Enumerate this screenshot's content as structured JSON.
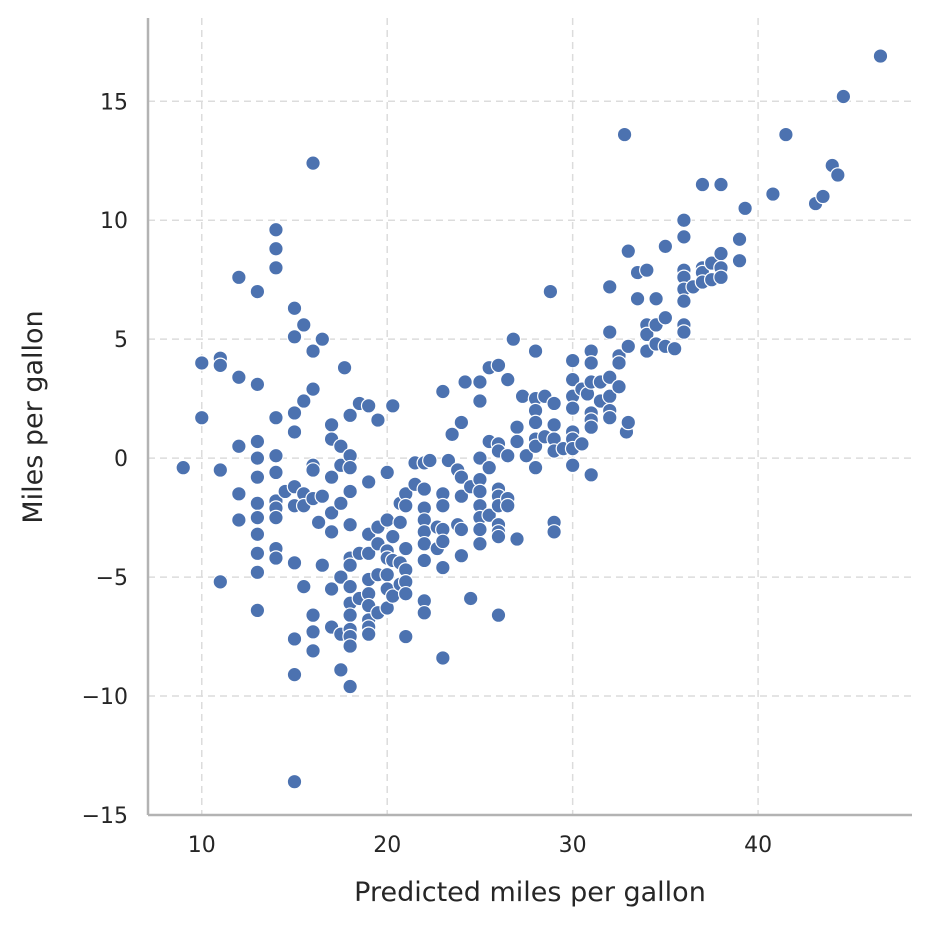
{
  "chart_data": {
    "type": "scatter",
    "title": "",
    "xlabel": "Predicted miles per gallon",
    "ylabel": "Miles per gallon",
    "xlim": [
      7.1,
      48.3
    ],
    "ylim": [
      -15.0,
      18.5
    ],
    "x_ticks": [
      10,
      20,
      30,
      40
    ],
    "y_ticks": [
      -15,
      -10,
      -5,
      0,
      5,
      10,
      15
    ],
    "y_tick_labels": [
      "−15",
      "−10",
      "−5",
      "0",
      "5",
      "10",
      "15"
    ],
    "grid": true,
    "color": "#4c72b0",
    "points": [
      [
        9,
        -0.4
      ],
      [
        10,
        4.0
      ],
      [
        10,
        1.7
      ],
      [
        11,
        4.2
      ],
      [
        11,
        3.9
      ],
      [
        11,
        -0.5
      ],
      [
        11,
        -5.2
      ],
      [
        12,
        7.6
      ],
      [
        12,
        3.4
      ],
      [
        12,
        0.5
      ],
      [
        12,
        -1.5
      ],
      [
        12,
        -2.6
      ],
      [
        13,
        7.0
      ],
      [
        13,
        3.1
      ],
      [
        13,
        0.7
      ],
      [
        13,
        0.0
      ],
      [
        13,
        -0.8
      ],
      [
        13,
        -1.9
      ],
      [
        13,
        -2.5
      ],
      [
        13,
        -3.2
      ],
      [
        13,
        -4.0
      ],
      [
        13,
        -4.8
      ],
      [
        13,
        -6.4
      ],
      [
        14,
        9.6
      ],
      [
        14,
        8.8
      ],
      [
        14,
        8.0
      ],
      [
        14,
        1.7
      ],
      [
        14,
        0.1
      ],
      [
        14,
        -0.6
      ],
      [
        14,
        -1.8
      ],
      [
        14,
        -2.1
      ],
      [
        14,
        -2.5
      ],
      [
        14,
        -3.8
      ],
      [
        14,
        -4.2
      ],
      [
        14.5,
        -1.4
      ],
      [
        15,
        6.3
      ],
      [
        15,
        5.1
      ],
      [
        15,
        1.9
      ],
      [
        15,
        1.1
      ],
      [
        15,
        -1.2
      ],
      [
        15,
        -2.0
      ],
      [
        15,
        -4.4
      ],
      [
        15,
        -7.6
      ],
      [
        15,
        -9.1
      ],
      [
        15,
        -13.6
      ],
      [
        15.5,
        5.6
      ],
      [
        15.5,
        2.4
      ],
      [
        15.5,
        -1.5
      ],
      [
        15.5,
        -2.0
      ],
      [
        15.5,
        -5.4
      ],
      [
        16,
        12.4
      ],
      [
        16,
        4.5
      ],
      [
        16,
        2.9
      ],
      [
        16,
        -0.3
      ],
      [
        16,
        -0.5
      ],
      [
        16,
        -1.7
      ],
      [
        16,
        -6.6
      ],
      [
        16,
        -7.3
      ],
      [
        16,
        -8.1
      ],
      [
        16.3,
        -2.7
      ],
      [
        16.5,
        5.0
      ],
      [
        16.5,
        -1.6
      ],
      [
        16.5,
        -4.5
      ],
      [
        17,
        1.4
      ],
      [
        17,
        0.8
      ],
      [
        17,
        -0.8
      ],
      [
        17,
        -2.3
      ],
      [
        17,
        -3.1
      ],
      [
        17,
        -5.5
      ],
      [
        17,
        -7.1
      ],
      [
        17.5,
        0.5
      ],
      [
        17.5,
        -0.3
      ],
      [
        17.5,
        -1.9
      ],
      [
        17.5,
        -5.0
      ],
      [
        17.5,
        -7.4
      ],
      [
        17.5,
        -8.9
      ],
      [
        17.7,
        3.8
      ],
      [
        18,
        1.8
      ],
      [
        18,
        0.1
      ],
      [
        18,
        -0.4
      ],
      [
        18,
        -1.4
      ],
      [
        18,
        -2.8
      ],
      [
        18,
        -4.2
      ],
      [
        18,
        -4.5
      ],
      [
        18,
        -5.4
      ],
      [
        18,
        -6.1
      ],
      [
        18,
        -6.6
      ],
      [
        18,
        -7.2
      ],
      [
        18,
        -7.5
      ],
      [
        18,
        -7.9
      ],
      [
        18,
        -9.6
      ],
      [
        18.5,
        2.3
      ],
      [
        18.5,
        -4.0
      ],
      [
        18.5,
        -5.9
      ],
      [
        19,
        2.2
      ],
      [
        19,
        -1.0
      ],
      [
        19,
        -3.2
      ],
      [
        19,
        -4.0
      ],
      [
        19,
        -5.1
      ],
      [
        19,
        -5.7
      ],
      [
        19,
        -6.2
      ],
      [
        19,
        -6.8
      ],
      [
        19,
        -7.1
      ],
      [
        19,
        -7.4
      ],
      [
        19.5,
        1.6
      ],
      [
        19.5,
        -2.9
      ],
      [
        19.5,
        -3.6
      ],
      [
        19.5,
        -4.9
      ],
      [
        19.5,
        -6.5
      ],
      [
        20,
        -0.6
      ],
      [
        20,
        -2.6
      ],
      [
        20,
        -3.9
      ],
      [
        20,
        -4.2
      ],
      [
        20,
        -4.9
      ],
      [
        20,
        -5.5
      ],
      [
        20,
        -6.3
      ],
      [
        20.3,
        2.2
      ],
      [
        20.3,
        -3.3
      ],
      [
        20.3,
        -4.3
      ],
      [
        20.3,
        -5.8
      ],
      [
        20.7,
        -1.9
      ],
      [
        20.7,
        -2.7
      ],
      [
        20.7,
        -4.4
      ],
      [
        20.7,
        -5.3
      ],
      [
        21,
        -1.5
      ],
      [
        21,
        -2.0
      ],
      [
        21,
        -3.8
      ],
      [
        21,
        -4.7
      ],
      [
        21,
        -5.2
      ],
      [
        21,
        -5.7
      ],
      [
        21,
        -7.5
      ],
      [
        21.5,
        -0.2
      ],
      [
        21.5,
        -1.1
      ],
      [
        22,
        -0.2
      ],
      [
        22,
        -1.3
      ],
      [
        22,
        -2.1
      ],
      [
        22,
        -2.6
      ],
      [
        22,
        -3.1
      ],
      [
        22,
        -3.6
      ],
      [
        22,
        -4.3
      ],
      [
        22,
        -6.0
      ],
      [
        22,
        -6.5
      ],
      [
        22.3,
        -0.1
      ],
      [
        22.7,
        -2.9
      ],
      [
        22.7,
        -3.8
      ],
      [
        23,
        2.8
      ],
      [
        23,
        -1.5
      ],
      [
        23,
        -2.0
      ],
      [
        23,
        -3.0
      ],
      [
        23,
        -3.5
      ],
      [
        23,
        -4.6
      ],
      [
        23,
        -8.4
      ],
      [
        23.3,
        -0.1
      ],
      [
        23.5,
        1.0
      ],
      [
        23.8,
        -0.5
      ],
      [
        23.8,
        -2.8
      ],
      [
        24,
        1.5
      ],
      [
        24,
        -0.8
      ],
      [
        24,
        -1.6
      ],
      [
        24,
        -3.0
      ],
      [
        24,
        -4.1
      ],
      [
        24.2,
        3.2
      ],
      [
        24.5,
        -1.2
      ],
      [
        24.5,
        -5.9
      ],
      [
        25,
        3.2
      ],
      [
        25,
        2.4
      ],
      [
        25,
        0.0
      ],
      [
        25,
        -0.9
      ],
      [
        25,
        -1.4
      ],
      [
        25,
        -2.0
      ],
      [
        25,
        -2.5
      ],
      [
        25,
        -3.0
      ],
      [
        25,
        -3.6
      ],
      [
        25.5,
        3.8
      ],
      [
        25.5,
        0.7
      ],
      [
        25.5,
        -0.4
      ],
      [
        25.5,
        -2.4
      ],
      [
        26,
        3.9
      ],
      [
        26,
        0.6
      ],
      [
        26,
        0.3
      ],
      [
        26,
        -1.3
      ],
      [
        26,
        -1.6
      ],
      [
        26,
        -2.0
      ],
      [
        26,
        -2.8
      ],
      [
        26,
        -3.1
      ],
      [
        26,
        -3.3
      ],
      [
        26,
        -6.6
      ],
      [
        26.5,
        3.3
      ],
      [
        26.5,
        0.1
      ],
      [
        26.5,
        -1.7
      ],
      [
        26.5,
        -2.0
      ],
      [
        26.8,
        5.0
      ],
      [
        27,
        1.3
      ],
      [
        27,
        0.7
      ],
      [
        27,
        -3.4
      ],
      [
        27.3,
        2.6
      ],
      [
        27.5,
        0.1
      ],
      [
        28,
        4.5
      ],
      [
        28,
        2.5
      ],
      [
        28,
        2.0
      ],
      [
        28,
        1.5
      ],
      [
        28,
        0.8
      ],
      [
        28,
        0.5
      ],
      [
        28,
        -0.4
      ],
      [
        28.5,
        2.6
      ],
      [
        28.5,
        0.9
      ],
      [
        28.8,
        7.0
      ],
      [
        29,
        2.3
      ],
      [
        29,
        1.4
      ],
      [
        29,
        0.8
      ],
      [
        29,
        0.3
      ],
      [
        29,
        -2.7
      ],
      [
        29,
        -3.1
      ],
      [
        29.5,
        0.4
      ],
      [
        30,
        4.1
      ],
      [
        30,
        3.3
      ],
      [
        30,
        2.6
      ],
      [
        30,
        2.1
      ],
      [
        30,
        1.1
      ],
      [
        30,
        0.8
      ],
      [
        30,
        0.4
      ],
      [
        30,
        -0.3
      ],
      [
        30.5,
        2.9
      ],
      [
        30.5,
        0.6
      ],
      [
        30.8,
        2.7
      ],
      [
        31,
        4.5
      ],
      [
        31,
        4.0
      ],
      [
        31,
        3.2
      ],
      [
        31,
        1.9
      ],
      [
        31,
        1.6
      ],
      [
        31,
        1.3
      ],
      [
        31,
        -0.7
      ],
      [
        31.5,
        3.2
      ],
      [
        31.5,
        2.4
      ],
      [
        32,
        7.2
      ],
      [
        32,
        5.3
      ],
      [
        32,
        3.4
      ],
      [
        32,
        2.6
      ],
      [
        32,
        2.0
      ],
      [
        32,
        1.7
      ],
      [
        32.5,
        4.3
      ],
      [
        32.5,
        3.0
      ],
      [
        32.5,
        4.0
      ],
      [
        32.8,
        13.6
      ],
      [
        32.9,
        1.1
      ],
      [
        33,
        8.7
      ],
      [
        33,
        4.7
      ],
      [
        33,
        1.5
      ],
      [
        33.5,
        7.8
      ],
      [
        33.5,
        6.7
      ],
      [
        34,
        7.9
      ],
      [
        34,
        5.6
      ],
      [
        34,
        5.2
      ],
      [
        34,
        4.5
      ],
      [
        34.5,
        6.7
      ],
      [
        34.5,
        5.6
      ],
      [
        34.5,
        4.8
      ],
      [
        35,
        8.9
      ],
      [
        35,
        5.9
      ],
      [
        35,
        4.7
      ],
      [
        35.5,
        4.6
      ],
      [
        36,
        10.0
      ],
      [
        36,
        9.3
      ],
      [
        36,
        7.9
      ],
      [
        36,
        7.6
      ],
      [
        36,
        7.1
      ],
      [
        36,
        6.6
      ],
      [
        36,
        5.6
      ],
      [
        36,
        5.3
      ],
      [
        36.5,
        7.2
      ],
      [
        37,
        11.5
      ],
      [
        37,
        8.0
      ],
      [
        37,
        7.8
      ],
      [
        37,
        7.4
      ],
      [
        37.5,
        8.2
      ],
      [
        37.5,
        7.5
      ],
      [
        38,
        11.5
      ],
      [
        38,
        8.6
      ],
      [
        38,
        8.0
      ],
      [
        38,
        7.6
      ],
      [
        39,
        9.2
      ],
      [
        39,
        8.3
      ],
      [
        39.3,
        10.5
      ],
      [
        40.8,
        11.1
      ],
      [
        41.5,
        13.6
      ],
      [
        43.1,
        10.7
      ],
      [
        43.5,
        11.0
      ],
      [
        44,
        12.3
      ],
      [
        44.3,
        11.9
      ],
      [
        44.6,
        15.2
      ],
      [
        46.6,
        16.9
      ]
    ]
  }
}
